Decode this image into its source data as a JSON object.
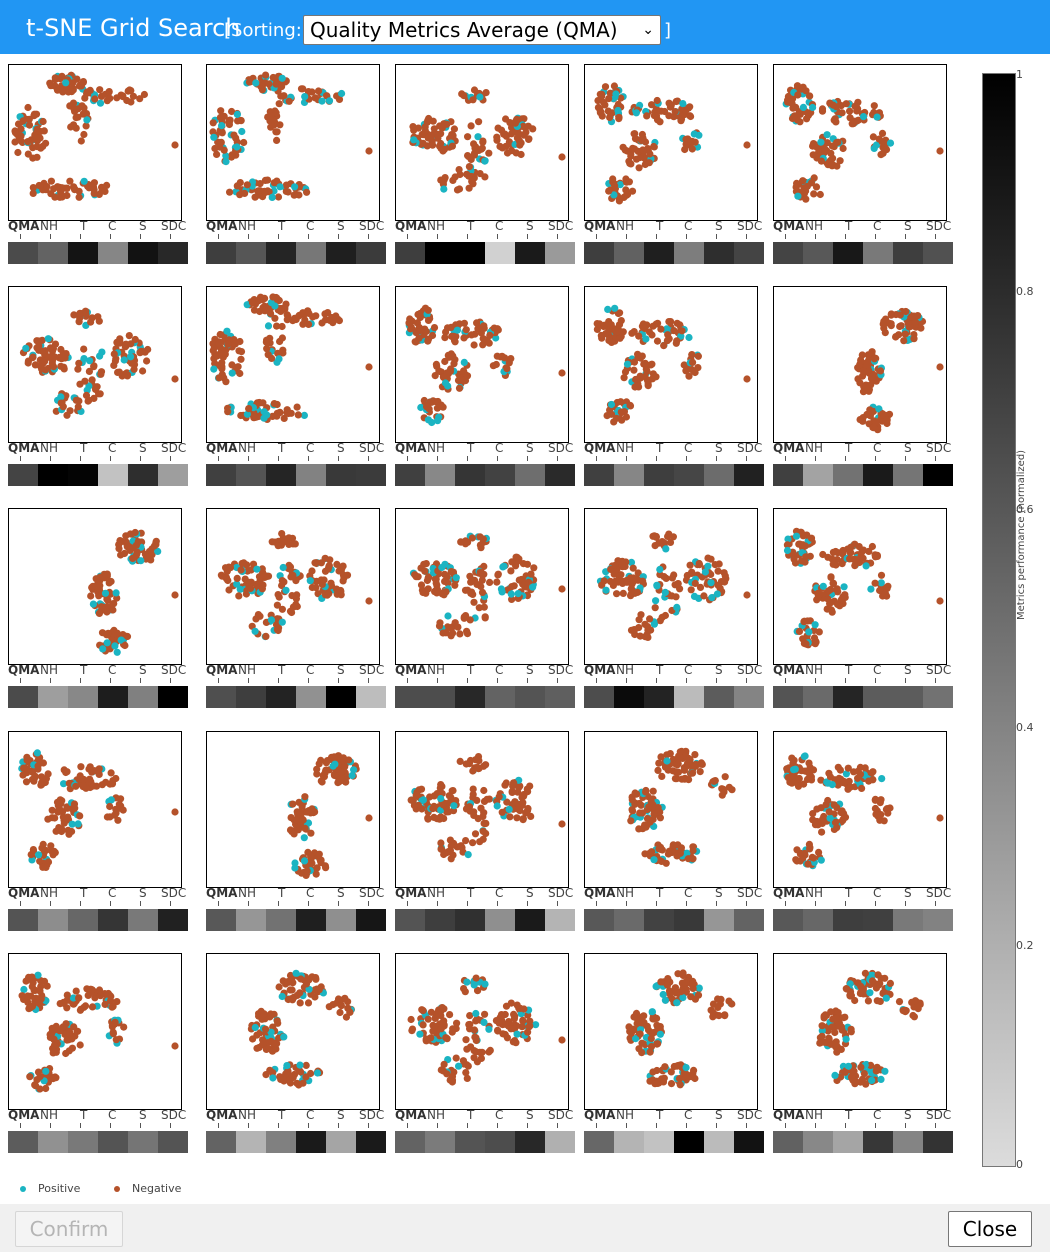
{
  "window": {
    "title": "t-SNE Grid Search",
    "sorting_prefix": "[Sorting:",
    "sorting_value": "Quality Metrics Average (QMA)",
    "sorting_suffix": "]"
  },
  "metric_labels": [
    "QMA",
    "NH",
    "T",
    "C",
    "S",
    "SDC"
  ],
  "tiles": [
    {
      "metrics": [
        0.66,
        0.55,
        0.91,
        0.39,
        0.92,
        0.82
      ],
      "outlier": true,
      "shape": "c-ring"
    },
    {
      "metrics": [
        0.72,
        0.61,
        0.83,
        0.46,
        0.86,
        0.73
      ],
      "outlier": true,
      "shape": "c-ring"
    },
    {
      "metrics": [
        0.72,
        1.0,
        1.0,
        0.05,
        0.88,
        0.3
      ],
      "outlier": true,
      "shape": "scatter"
    },
    {
      "metrics": [
        0.72,
        0.56,
        0.86,
        0.43,
        0.79,
        0.69
      ],
      "outlier": true,
      "shape": "hook"
    },
    {
      "metrics": [
        0.69,
        0.6,
        0.89,
        0.45,
        0.72,
        0.63
      ],
      "outlier": true,
      "shape": "hook"
    },
    {
      "metrics": [
        0.69,
        1.0,
        0.98,
        0.12,
        0.79,
        0.28
      ],
      "outlier": true,
      "shape": "scatter"
    },
    {
      "metrics": [
        0.71,
        0.62,
        0.83,
        0.41,
        0.74,
        0.73
      ],
      "outlier": true,
      "shape": "c-ring"
    },
    {
      "metrics": [
        0.71,
        0.38,
        0.76,
        0.7,
        0.5,
        0.81
      ],
      "outlier": true,
      "shape": "hook"
    },
    {
      "metrics": [
        0.71,
        0.39,
        0.72,
        0.68,
        0.51,
        0.85
      ],
      "outlier": true,
      "shape": "hook"
    },
    {
      "metrics": [
        0.71,
        0.26,
        0.48,
        0.88,
        0.47,
        1.0
      ],
      "outlier": true,
      "shape": "hook-right"
    },
    {
      "metrics": [
        0.66,
        0.28,
        0.38,
        0.87,
        0.42,
        1.0
      ],
      "outlier": true,
      "shape": "hook-right"
    },
    {
      "metrics": [
        0.64,
        0.72,
        0.84,
        0.34,
        1.0,
        0.14
      ],
      "outlier": true,
      "shape": "scatter"
    },
    {
      "metrics": [
        0.65,
        0.65,
        0.82,
        0.55,
        0.62,
        0.57
      ],
      "outlier": true,
      "shape": "scatter"
    },
    {
      "metrics": [
        0.65,
        0.95,
        0.84,
        0.15,
        0.58,
        0.4
      ],
      "outlier": true,
      "shape": "scatter"
    },
    {
      "metrics": [
        0.62,
        0.52,
        0.83,
        0.58,
        0.58,
        0.48
      ],
      "outlier": true,
      "shape": "hook"
    },
    {
      "metrics": [
        0.62,
        0.36,
        0.53,
        0.76,
        0.45,
        0.85
      ],
      "outlier": true,
      "shape": "hook"
    },
    {
      "metrics": [
        0.6,
        0.32,
        0.48,
        0.86,
        0.35,
        0.9
      ],
      "outlier": true,
      "shape": "hook-right"
    },
    {
      "metrics": [
        0.62,
        0.72,
        0.78,
        0.35,
        0.88,
        0.18
      ],
      "outlier": true,
      "shape": "scatter"
    },
    {
      "metrics": [
        0.6,
        0.52,
        0.7,
        0.74,
        0.32,
        0.55
      ],
      "outlier": false,
      "shape": "blob"
    },
    {
      "metrics": [
        0.6,
        0.53,
        0.72,
        0.71,
        0.45,
        0.41
      ],
      "outlier": true,
      "shape": "hook"
    },
    {
      "metrics": [
        0.58,
        0.34,
        0.45,
        0.62,
        0.47,
        0.62
      ],
      "outlier": true,
      "shape": "hook"
    },
    {
      "metrics": [
        0.55,
        0.18,
        0.42,
        0.88,
        0.25,
        0.88
      ],
      "outlier": false,
      "shape": "blob"
    },
    {
      "metrics": [
        0.55,
        0.44,
        0.62,
        0.65,
        0.82,
        0.2
      ],
      "outlier": true,
      "shape": "scatter"
    },
    {
      "metrics": [
        0.53,
        0.18,
        0.12,
        1.0,
        0.15,
        0.92
      ],
      "outlier": false,
      "shape": "blob"
    },
    {
      "metrics": [
        0.56,
        0.38,
        0.25,
        0.75,
        0.4,
        0.77
      ],
      "outlier": false,
      "shape": "blob"
    }
  ],
  "colorbar": {
    "label": "Metrics performance (normalized)",
    "ticks": [
      "1",
      "0.8",
      "0.6",
      "0.4",
      "0.2",
      "0"
    ]
  },
  "legend": {
    "positive_label": "Positive",
    "negative_label": "Negative",
    "positive_color": "#1bb4c2",
    "negative_color": "#b5522a"
  },
  "buttons": {
    "confirm_label": "Confirm",
    "close_label": "Close"
  }
}
